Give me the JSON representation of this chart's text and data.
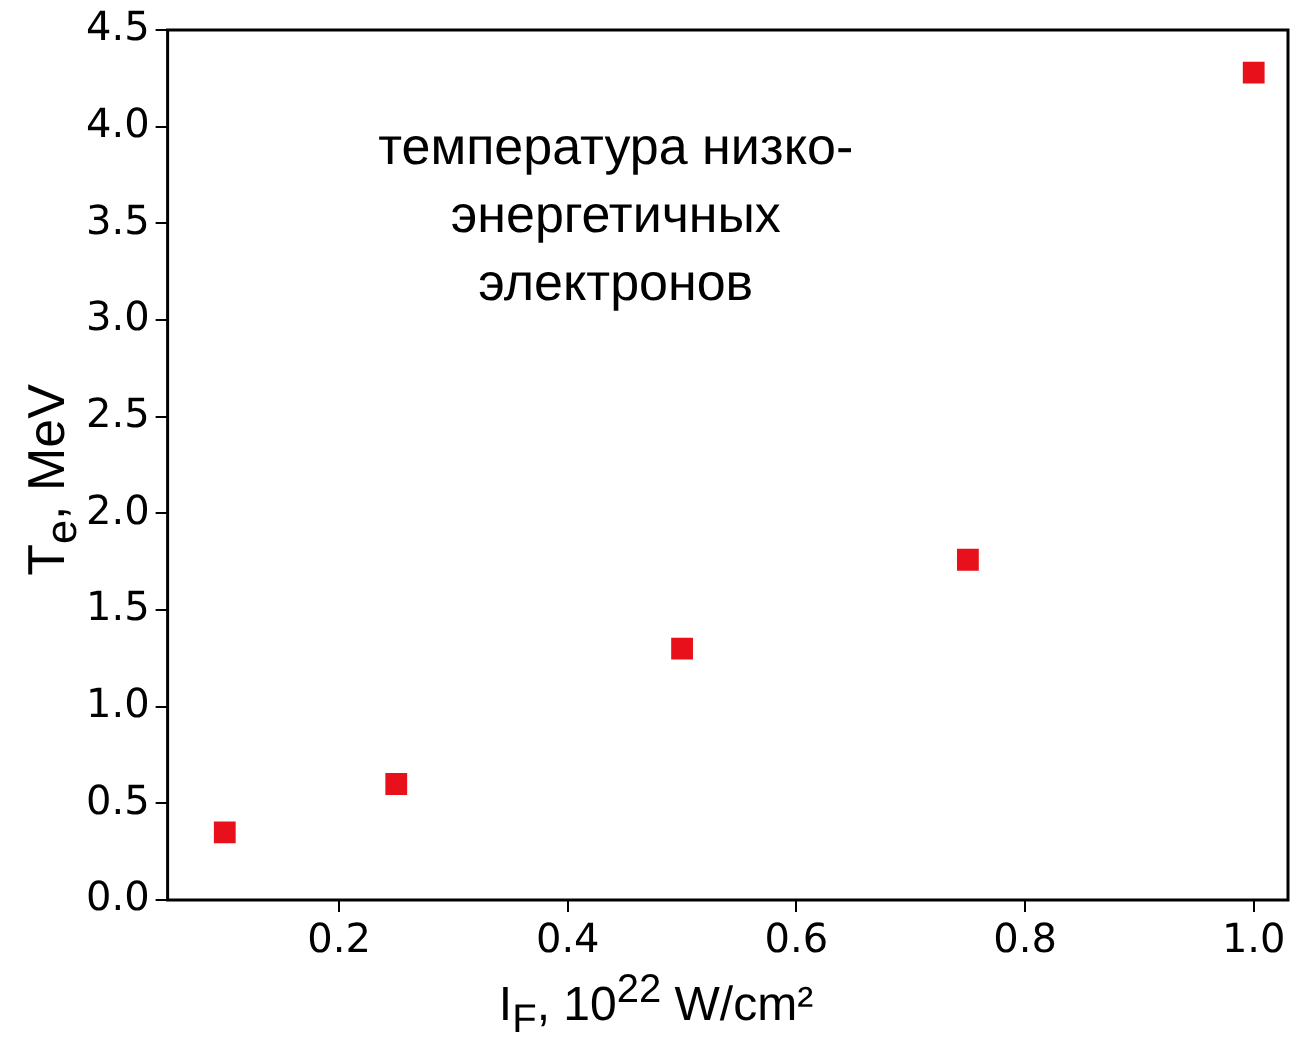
{
  "chart_data": {
    "type": "scatter",
    "xlabel": "I$_{F}$, 10$^{22}$ W/cm²",
    "ylabel": "T$_{e}$, MeV",
    "annotations": [
      "температура низко-\nэнергетичных\nэлектронов"
    ],
    "x": [
      0.1,
      0.25,
      0.5,
      0.75,
      1.0
    ],
    "series": [
      {
        "color": "#e8111b",
        "values": [
          0.35,
          0.6,
          1.3,
          1.76,
          4.28
        ]
      }
    ],
    "xlim": [
      0.05,
      1.03
    ],
    "xticks": [
      {
        "value": 0.2,
        "label": "0.2"
      },
      {
        "value": 0.4,
        "label": "0.4"
      },
      {
        "value": 0.6,
        "label": "0.6"
      },
      {
        "value": 0.8,
        "label": "0.8"
      },
      {
        "value": 1.0,
        "label": "1.0"
      }
    ],
    "ylim": [
      0,
      4.5
    ],
    "yticks": [
      {
        "value": 0,
        "label": "0.0"
      },
      {
        "value": 0.5,
        "label": "0.5"
      },
      {
        "value": 1,
        "label": "1.0"
      },
      {
        "value": 1.5,
        "label": "1.5"
      },
      {
        "value": 2,
        "label": "2.0"
      },
      {
        "value": 2.5,
        "label": "2.5"
      },
      {
        "value": 3,
        "label": "3.0"
      },
      {
        "value": 3.5,
        "label": "3.5"
      },
      {
        "value": 4,
        "label": "4.0"
      },
      {
        "value": 4.5,
        "label": "4.5"
      }
    ],
    "grid": false,
    "legend": false,
    "marker": "square"
  }
}
